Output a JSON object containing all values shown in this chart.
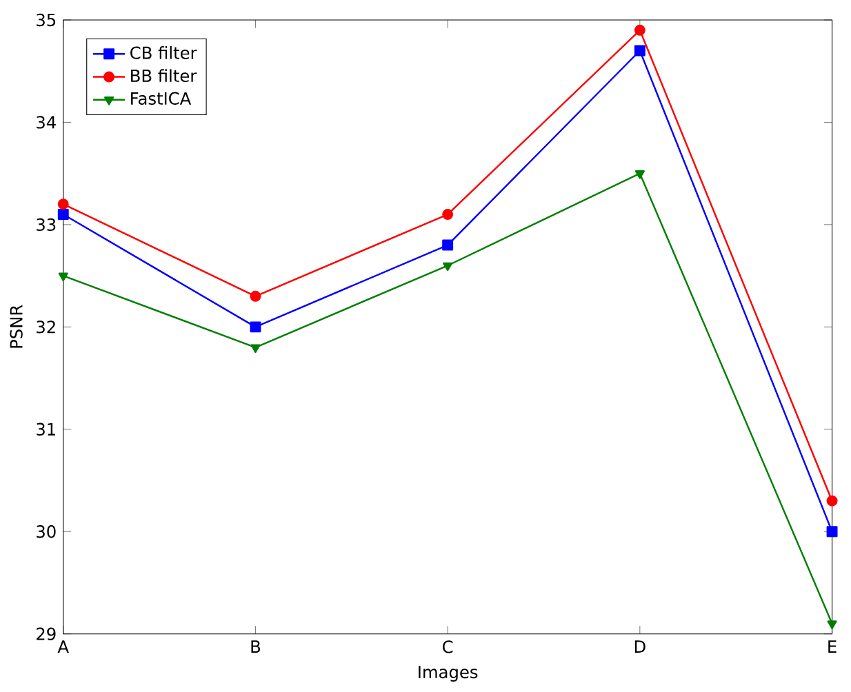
{
  "chart_data": {
    "type": "line",
    "xlabel": "Images",
    "ylabel": "PSNR",
    "categories": [
      "A",
      "B",
      "C",
      "D",
      "E"
    ],
    "series": [
      {
        "name": "CB filter",
        "color": "#0000ff",
        "marker": "square",
        "values": [
          33.1,
          32.0,
          32.8,
          34.7,
          30.0
        ]
      },
      {
        "name": "BB filter",
        "color": "#ff0000",
        "marker": "circle",
        "values": [
          33.2,
          32.3,
          33.1,
          34.9,
          30.3
        ]
      },
      {
        "name": "FastICA",
        "color": "#007f00",
        "marker": "triangle",
        "values": [
          32.5,
          31.8,
          32.6,
          33.5,
          29.1
        ]
      }
    ],
    "ylim": [
      29,
      35
    ],
    "yticks": [
      29,
      30,
      31,
      32,
      33,
      34,
      35
    ],
    "legend": "top left",
    "grid": false
  }
}
